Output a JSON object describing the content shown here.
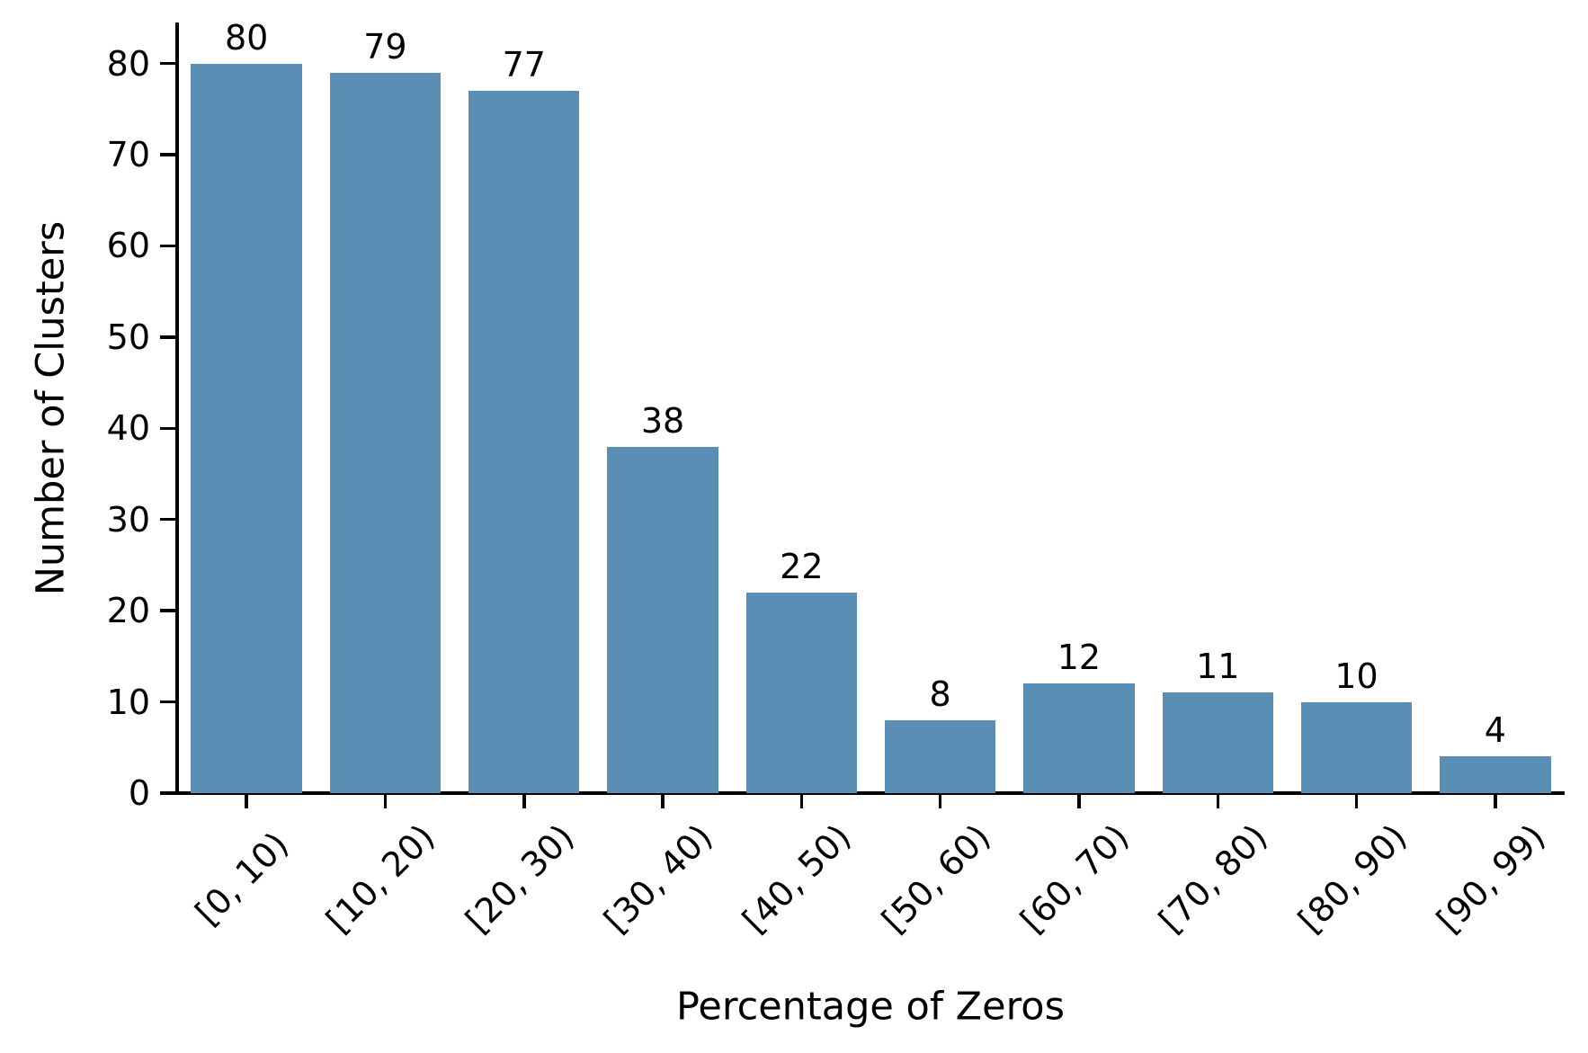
{
  "chart_data": {
    "type": "bar",
    "title": "",
    "xlabel": "Percentage of Zeros",
    "ylabel": "Number of Clusters",
    "categories": [
      "[0, 10)",
      "[10, 20)",
      "[20, 30)",
      "[30, 40)",
      "[40, 50)",
      "[50, 60)",
      "[60, 70)",
      "[70, 80)",
      "[80, 90)",
      "[90, 99)"
    ],
    "values": [
      80,
      79,
      77,
      38,
      22,
      8,
      12,
      11,
      10,
      4
    ],
    "bar_value_labels": [
      "80",
      "79",
      "77",
      "38",
      "22",
      "8",
      "12",
      "11",
      "10",
      "4"
    ],
    "yticks": [
      0,
      10,
      20,
      30,
      40,
      50,
      60,
      70,
      80
    ],
    "ylim": [
      0,
      84.5
    ],
    "xtick_rotation_deg": 45,
    "grid": false,
    "legend": false,
    "colors": {
      "bar": "#5B8EB4",
      "axis": "#000000",
      "text": "#000000",
      "background": "#FFFFFF"
    }
  }
}
